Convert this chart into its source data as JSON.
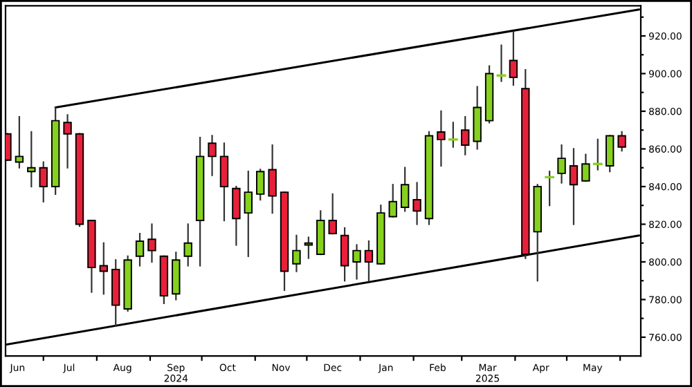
{
  "chart_data": {
    "type": "candlestick",
    "x": [
      "2024-06-10",
      "2024-06-17",
      "2024-06-24",
      "2024-07-01",
      "2024-07-08",
      "2024-07-15",
      "2024-07-22",
      "2024-07-29",
      "2024-08-05",
      "2024-08-12",
      "2024-08-19",
      "2024-08-26",
      "2024-09-02",
      "2024-09-09",
      "2024-09-16",
      "2024-09-23",
      "2024-09-30",
      "2024-10-07",
      "2024-10-14",
      "2024-10-21",
      "2024-10-28",
      "2024-11-04",
      "2024-11-11",
      "2024-11-18",
      "2024-11-25",
      "2024-12-02",
      "2024-12-09",
      "2024-12-16",
      "2024-12-23",
      "2024-12-30",
      "2025-01-06",
      "2025-01-13",
      "2025-01-20",
      "2025-01-27",
      "2025-02-03",
      "2025-02-10",
      "2025-02-17",
      "2025-02-24",
      "2025-03-03",
      "2025-03-10",
      "2025-03-17",
      "2025-03-24",
      "2025-03-31",
      "2025-04-07",
      "2025-04-14",
      "2025-04-21",
      "2025-04-28",
      "2025-05-05",
      "2025-05-12",
      "2025-05-19",
      "2025-05-26",
      "2025-06-02"
    ],
    "ohlc": [
      [
        868,
        868,
        854,
        854
      ],
      [
        853,
        877,
        850,
        856
      ],
      [
        848,
        869,
        840,
        850
      ],
      [
        850,
        853,
        832,
        840
      ],
      [
        840,
        882,
        836,
        875
      ],
      [
        874,
        878,
        850,
        868
      ],
      [
        868,
        868,
        819,
        820
      ],
      [
        822,
        822,
        784,
        797
      ],
      [
        798,
        810,
        783,
        795
      ],
      [
        796,
        801,
        766,
        777
      ],
      [
        775,
        803,
        774,
        801
      ],
      [
        803,
        815,
        798,
        811
      ],
      [
        812,
        820,
        800,
        806
      ],
      [
        803,
        803,
        778,
        782
      ],
      [
        783,
        805,
        780,
        801
      ],
      [
        803,
        820,
        798,
        810
      ],
      [
        822,
        866,
        798,
        856
      ],
      [
        863,
        867,
        846,
        856
      ],
      [
        856,
        863,
        822,
        840
      ],
      [
        839,
        840,
        809,
        823
      ],
      [
        826,
        848,
        803,
        837
      ],
      [
        836,
        849,
        833,
        848
      ],
      [
        849,
        862,
        826,
        835
      ],
      [
        837,
        837,
        785,
        795
      ],
      [
        799,
        814,
        795,
        806
      ],
      [
        809,
        813,
        802,
        810
      ],
      [
        804,
        827,
        804,
        822
      ],
      [
        822,
        836,
        815,
        815
      ],
      [
        814,
        818,
        790,
        798
      ],
      [
        800,
        809,
        791,
        806
      ],
      [
        806,
        811,
        790,
        800
      ],
      [
        799,
        830,
        799,
        826
      ],
      [
        824,
        841,
        824,
        832
      ],
      [
        829,
        850,
        827,
        841
      ],
      [
        833,
        842,
        820,
        827
      ],
      [
        823,
        869,
        820,
        867
      ],
      [
        869,
        880,
        851,
        865
      ],
      [
        865,
        874,
        861,
        865
      ],
      [
        870,
        877,
        857,
        862
      ],
      [
        864,
        893,
        860,
        882
      ],
      [
        875,
        904,
        874,
        900
      ],
      [
        899,
        915,
        896,
        899
      ],
      [
        907,
        922,
        894,
        898
      ],
      [
        892,
        902,
        802,
        804
      ],
      [
        816,
        841,
        790,
        840
      ],
      [
        845,
        848,
        830,
        845
      ],
      [
        847,
        862,
        842,
        855
      ],
      [
        851,
        860,
        820,
        841
      ],
      [
        843,
        857,
        843,
        852
      ],
      [
        852,
        865,
        849,
        852
      ],
      [
        851,
        867,
        848,
        867
      ],
      [
        867,
        869,
        859,
        861
      ]
    ],
    "colors": [
      "#e8203a",
      "#86d11e",
      "#86d11e",
      "#e8203a",
      "#86d11e",
      "#e8203a",
      "#e8203a",
      "#e8203a",
      "#e8203a",
      "#e8203a",
      "#86d11e",
      "#86d11e",
      "#e8203a",
      "#e8203a",
      "#86d11e",
      "#86d11e",
      "#86d11e",
      "#e8203a",
      "#e8203a",
      "#e8203a",
      "#86d11e",
      "#86d11e",
      "#e8203a",
      "#e8203a",
      "#86d11e",
      "#86d11e",
      "#86d11e",
      "#e8203a",
      "#e8203a",
      "#86d11e",
      "#e8203a",
      "#86d11e",
      "#86d11e",
      "#86d11e",
      "#e8203a",
      "#86d11e",
      "#e8203a",
      "#86d11e",
      "#e8203a",
      "#86d11e",
      "#86d11e",
      "#86d11e",
      "#e8203a",
      "#e8203a",
      "#86d11e",
      "#86d11e",
      "#86d11e",
      "#e8203a",
      "#86d11e",
      "#86d11e",
      "#86d11e",
      "#e8203a"
    ],
    "series": [
      {
        "type": "line",
        "color": "#000000",
        "x": [
          "2024-07-08",
          "2025-06-12"
        ],
        "values": [
          882,
          934
        ]
      },
      {
        "type": "line",
        "color": "#000000",
        "x": [
          "2024-06-09",
          "2025-06-12"
        ],
        "values": [
          756,
          814
        ]
      }
    ],
    "xlim": [
      "2024-06-09",
      "2025-06-13"
    ],
    "xticks": [
      {
        "value": "2024-06-16",
        "label": "Jun"
      },
      {
        "value": "2024-07-01",
        "label": null
      },
      {
        "value": "2024-07-16",
        "label": "Jul"
      },
      {
        "value": "2024-08-01",
        "label": null
      },
      {
        "value": "2024-08-16",
        "label": "Aug"
      },
      {
        "value": "2024-09-01",
        "label": null
      },
      {
        "value": "2024-09-16",
        "label": "Sep\n2024"
      },
      {
        "value": "2024-10-01",
        "label": null
      },
      {
        "value": "2024-10-16",
        "label": "Oct"
      },
      {
        "value": "2024-11-01",
        "label": null
      },
      {
        "value": "2024-11-16",
        "label": "Nov"
      },
      {
        "value": "2024-12-01",
        "label": null
      },
      {
        "value": "2024-12-16",
        "label": "Dec"
      },
      {
        "value": "2025-01-01",
        "label": null
      },
      {
        "value": "2025-01-16",
        "label": "Jan"
      },
      {
        "value": "2025-02-01",
        "label": null
      },
      {
        "value": "2025-02-15",
        "label": "Feb"
      },
      {
        "value": "2025-03-01",
        "label": null
      },
      {
        "value": "2025-03-16",
        "label": "Mar\n2025"
      },
      {
        "value": "2025-04-01",
        "label": null
      },
      {
        "value": "2025-04-16",
        "label": "Apr"
      },
      {
        "value": "2025-05-01",
        "label": null
      },
      {
        "value": "2025-05-16",
        "label": "May"
      },
      {
        "value": "2025-06-01",
        "label": null
      }
    ],
    "ylim": [
      750,
      936
    ],
    "yticks": [
      {
        "value": 760,
        "label": "760.00"
      },
      {
        "value": 770,
        "label": null
      },
      {
        "value": 780,
        "label": "780.00"
      },
      {
        "value": 790,
        "label": null
      },
      {
        "value": 800,
        "label": "800.00"
      },
      {
        "value": 810,
        "label": null
      },
      {
        "value": 820,
        "label": "820.00"
      },
      {
        "value": 830,
        "label": null
      },
      {
        "value": 840,
        "label": "840.00"
      },
      {
        "value": 850,
        "label": null
      },
      {
        "value": 860,
        "label": "860.00"
      },
      {
        "value": 870,
        "label": null
      },
      {
        "value": 880,
        "label": "880.00"
      },
      {
        "value": 890,
        "label": null
      },
      {
        "value": 900,
        "label": "900.00"
      },
      {
        "value": 910,
        "label": null
      },
      {
        "value": 920,
        "label": "920.00"
      },
      {
        "value": 930,
        "label": null
      }
    ],
    "grid": false,
    "legend": false
  }
}
